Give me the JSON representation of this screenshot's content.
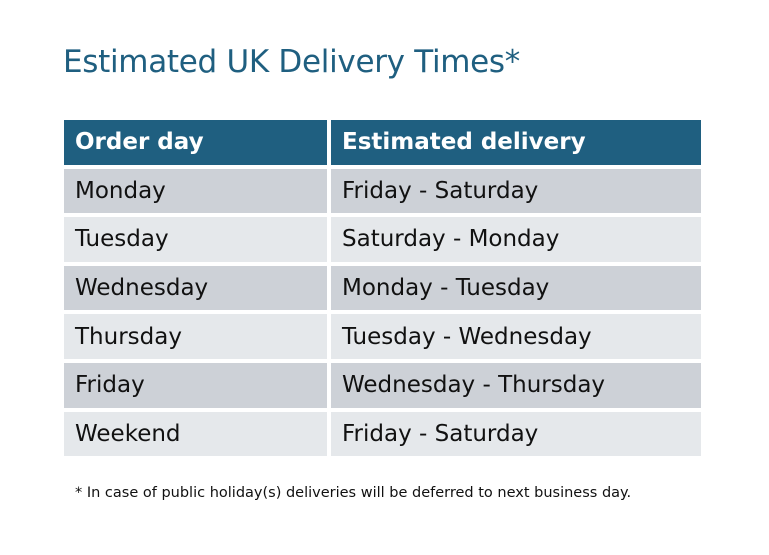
{
  "title": "Estimated UK Delivery Times*",
  "table": {
    "headers": [
      "Order day",
      "Estimated delivery"
    ],
    "rows": [
      [
        "Monday",
        "Friday - Saturday"
      ],
      [
        "Tuesday",
        "Saturday - Monday"
      ],
      [
        "Wednesday",
        "Monday - Tuesday"
      ],
      [
        "Thursday",
        "Tuesday - Wednesday"
      ],
      [
        "Friday",
        "Wednesday - Thursday"
      ],
      [
        "Weekend",
        "Friday - Saturday"
      ]
    ]
  },
  "footnote": "* In case of public holiday(s) deliveries will be deferred to next business day.",
  "colors": {
    "header": "#1f5f80",
    "row_odd": "#cdd1d7",
    "row_even": "#e5e8eb",
    "title": "#1f5f80"
  }
}
